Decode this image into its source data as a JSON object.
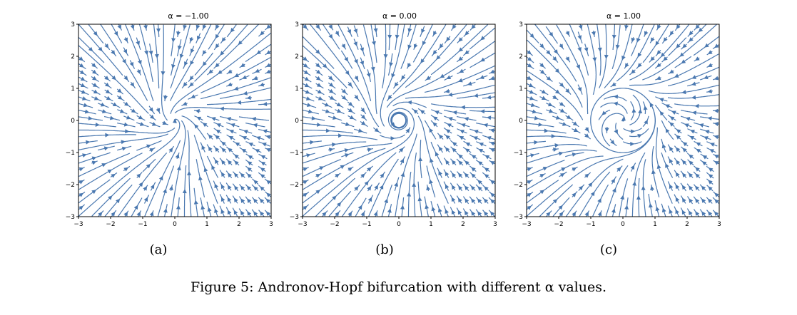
{
  "panels": [
    {
      "title": "α = −1.00",
      "alpha": -1.0,
      "label": "(a)"
    },
    {
      "title": "α = 0.00",
      "alpha": 0.0,
      "label": "(b)"
    },
    {
      "title": "α = 1.00",
      "alpha": 1.0,
      "label": "(c)"
    }
  ],
  "axes": {
    "xlim": [
      -3,
      3
    ],
    "ylim": [
      -3,
      3
    ],
    "xticks": [
      "−3",
      "−2",
      "−1",
      "0",
      "1",
      "2",
      "3"
    ],
    "yticks": [
      "3",
      "2",
      "1",
      "0",
      "−1",
      "−2",
      "−3"
    ]
  },
  "colors": {
    "stream": "#4a78b0",
    "frame": "#000000"
  },
  "caption": "Figure 5: Andronov-Hopf bifurcation with different α values.",
  "chart_data": [
    {
      "type": "streamplot",
      "title": "α = −1.00",
      "alpha": -1.0,
      "xlim": [
        -3,
        3
      ],
      "ylim": [
        -3,
        3
      ],
      "grid": false
    },
    {
      "type": "streamplot",
      "title": "α = 0.00",
      "alpha": 0.0,
      "xlim": [
        -3,
        3
      ],
      "ylim": [
        -3,
        3
      ],
      "grid": false
    },
    {
      "type": "streamplot",
      "title": "α = 1.00",
      "alpha": 1.0,
      "xlim": [
        -3,
        3
      ],
      "ylim": [
        -3,
        3
      ],
      "grid": false
    }
  ]
}
